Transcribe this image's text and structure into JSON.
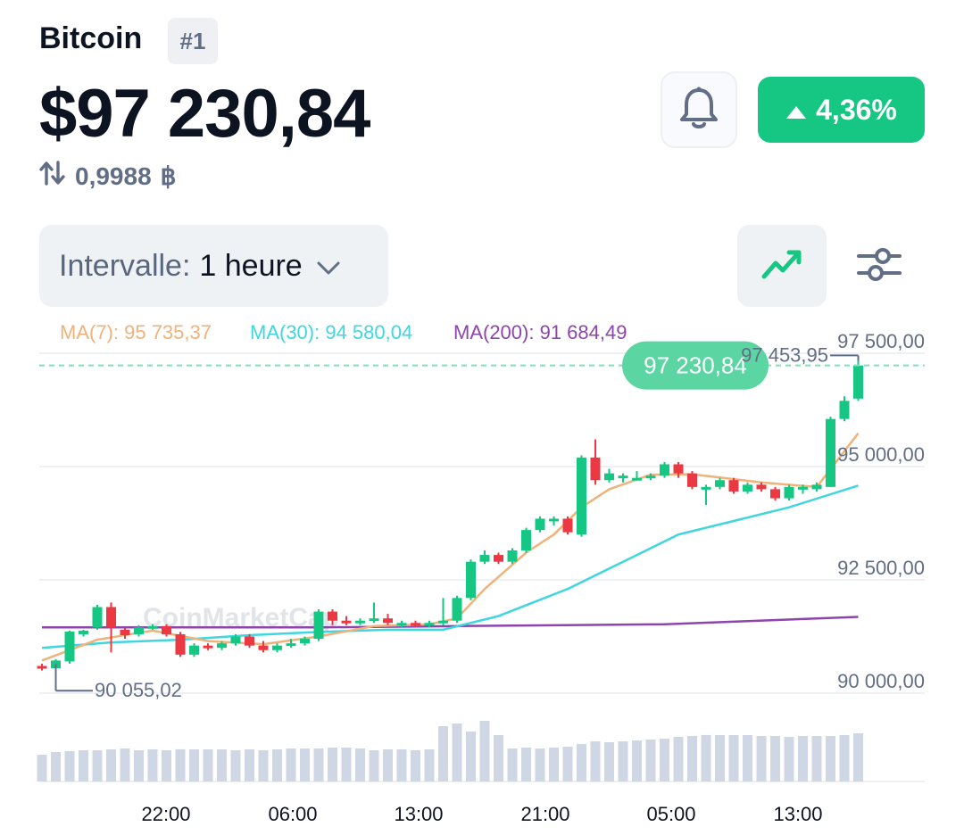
{
  "header": {
    "coin_name": "Bitcoin",
    "rank": "#1",
    "price": "$97 230,84",
    "conversion_value": "0,9988",
    "conversion_symbol": "฿",
    "change": "4,36%"
  },
  "controls": {
    "interval_label": "Intervalle:",
    "interval_value": "1 heure"
  },
  "moving_averages": {
    "ma7": "MA(7): 95 735,37",
    "ma30": "MA(30): 94 580,04",
    "ma200": "MA(200): 91 684,49"
  },
  "colors": {
    "up": "#16c784",
    "down": "#ea3943",
    "ma7": "#f0b27a",
    "ma30": "#3fd6e0",
    "ma200": "#8e44ad",
    "volume": "#cfd6e4"
  },
  "icons": [
    "bell-icon",
    "caret-up-icon",
    "chevron-down-icon",
    "line-chart-icon",
    "sliders-icon",
    "swap-arrows-icon"
  ],
  "watermark": "CoinMarketCap",
  "chart_data": {
    "type": "candlestick",
    "y_axis_labels": [
      "97 500,00",
      "95 000,00",
      "92 500,00",
      "90 000,00"
    ],
    "y_ticks": [
      97500,
      95000,
      92500,
      90000
    ],
    "x_axis_labels": [
      "22:00",
      "06:00",
      "13:00",
      "21:00",
      "05:00",
      "13:00"
    ],
    "current_price_label": "97 230,84",
    "current_price": 97230.84,
    "high_label": "97 453,95",
    "high": 97453.95,
    "low_label": "90 055,02",
    "low": 90055.02,
    "candles": [
      [
        90600,
        90550,
        90650,
        90500
      ],
      [
        90550,
        90720,
        90750,
        90500
      ],
      [
        90700,
        91360,
        91380,
        90650
      ],
      [
        91300,
        91380,
        91400,
        91250
      ],
      [
        91450,
        91900,
        91950,
        91400
      ],
      [
        91900,
        91450,
        92000,
        90900
      ],
      [
        91400,
        91280,
        91450,
        91200
      ],
      [
        91300,
        91450,
        91500,
        91250
      ],
      [
        91450,
        91480,
        91520,
        91400
      ],
      [
        91480,
        91300,
        91520,
        91250
      ],
      [
        91300,
        90850,
        91350,
        90800
      ],
      [
        90850,
        91050,
        91100,
        90800
      ],
      [
        91050,
        91000,
        91100,
        90950
      ],
      [
        91000,
        91100,
        91150,
        90950
      ],
      [
        91100,
        91250,
        91300,
        91050
      ],
      [
        91250,
        91050,
        91300,
        91000
      ],
      [
        91050,
        90950,
        91150,
        90900
      ],
      [
        90950,
        91050,
        91100,
        90900
      ],
      [
        91050,
        91100,
        91200,
        91000
      ],
      [
        91100,
        91200,
        91250,
        91050
      ],
      [
        91200,
        91800,
        91850,
        91150
      ],
      [
        91800,
        91600,
        91850,
        91500
      ],
      [
        91600,
        91550,
        91700,
        91500
      ],
      [
        91550,
        91600,
        91650,
        91500
      ],
      [
        91600,
        91650,
        92000,
        91550
      ],
      [
        91650,
        91550,
        91750,
        91500
      ],
      [
        91550,
        91550,
        91600,
        91450
      ],
      [
        91550,
        91500,
        91600,
        91450
      ],
      [
        91500,
        91550,
        91600,
        91450
      ],
      [
        91550,
        91600,
        92100,
        91500
      ],
      [
        91600,
        92100,
        92150,
        91550
      ],
      [
        92100,
        92900,
        92950,
        92050
      ],
      [
        92900,
        93050,
        93150,
        92850
      ],
      [
        93050,
        92900,
        93100,
        92850
      ],
      [
        92900,
        93150,
        93200,
        92850
      ],
      [
        93150,
        93600,
        93650,
        93100
      ],
      [
        93600,
        93850,
        93900,
        93550
      ],
      [
        93800,
        93850,
        93900,
        93700
      ],
      [
        93850,
        93550,
        93900,
        93500
      ],
      [
        93500,
        95200,
        95250,
        93450
      ],
      [
        95200,
        94700,
        95600,
        94600
      ],
      [
        94700,
        94850,
        94950,
        94650
      ],
      [
        94800,
        94800,
        94850,
        94650
      ],
      [
        94750,
        94750,
        94900,
        94700
      ],
      [
        94750,
        94800,
        94850,
        94700
      ],
      [
        94800,
        95050,
        95100,
        94750
      ],
      [
        95050,
        94850,
        95100,
        94750
      ],
      [
        94850,
        94550,
        94900,
        94500
      ],
      [
        94550,
        94550,
        94600,
        94150
      ],
      [
        94550,
        94700,
        94750,
        94500
      ],
      [
        94700,
        94450,
        94750,
        94400
      ],
      [
        94450,
        94600,
        94650,
        94400
      ],
      [
        94600,
        94500,
        94650,
        94450
      ],
      [
        94500,
        94300,
        94550,
        94250
      ],
      [
        94300,
        94550,
        94600,
        94250
      ],
      [
        94550,
        94550,
        94600,
        94400
      ],
      [
        94500,
        94600,
        94650,
        94450
      ],
      [
        94550,
        96050,
        96100,
        94550
      ],
      [
        96050,
        96450,
        96550,
        96000
      ],
      [
        96500,
        97230,
        97450,
        96450
      ]
    ],
    "ma7": [
      [
        0,
        90720
      ],
      [
        4,
        91180
      ],
      [
        8,
        91380
      ],
      [
        12,
        91150
      ],
      [
        16,
        91080
      ],
      [
        20,
        91250
      ],
      [
        24,
        91480
      ],
      [
        28,
        91520
      ],
      [
        30,
        91650
      ],
      [
        32,
        92300
      ],
      [
        35,
        93100
      ],
      [
        37,
        93500
      ],
      [
        39,
        94100
      ],
      [
        41,
        94500
      ],
      [
        44,
        94820
      ],
      [
        47,
        94830
      ],
      [
        52,
        94650
      ],
      [
        56,
        94550
      ],
      [
        59,
        95735
      ]
    ],
    "ma30": [
      [
        0,
        91000
      ],
      [
        5,
        91120
      ],
      [
        10,
        91180
      ],
      [
        15,
        91280
      ],
      [
        20,
        91350
      ],
      [
        25,
        91400
      ],
      [
        29,
        91400
      ],
      [
        33,
        91700
      ],
      [
        38,
        92300
      ],
      [
        42,
        92900
      ],
      [
        46,
        93500
      ],
      [
        50,
        93800
      ],
      [
        54,
        94100
      ],
      [
        59,
        94580
      ]
    ],
    "ma200": [
      [
        0,
        91450
      ],
      [
        20,
        91450
      ],
      [
        30,
        91480
      ],
      [
        45,
        91520
      ],
      [
        59,
        91684
      ]
    ],
    "volume": [
      30,
      33,
      34,
      35,
      35,
      36,
      37,
      35,
      36,
      35,
      36,
      36,
      36,
      36,
      35,
      36,
      35,
      36,
      37,
      37,
      37,
      38,
      38,
      37,
      35,
      36,
      36,
      35,
      36,
      62,
      65,
      56,
      68,
      52,
      37,
      38,
      37,
      38,
      39,
      42,
      45,
      44,
      45,
      46,
      47,
      48,
      50,
      51,
      52,
      52,
      52,
      52,
      51,
      51,
      50,
      51,
      51,
      51,
      52,
      54
    ]
  }
}
